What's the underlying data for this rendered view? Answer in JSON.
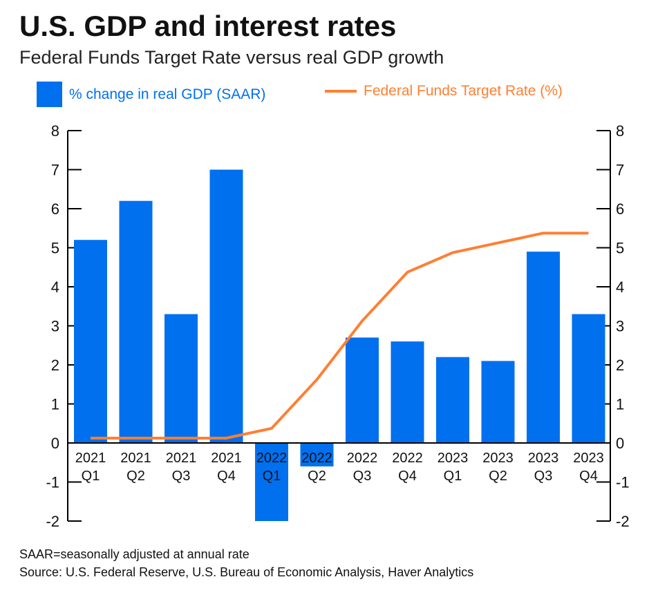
{
  "chart_data": {
    "type": "bar+line",
    "title": "U.S. GDP and interest rates",
    "subtitle": "Federal Funds Target Rate versus real GDP growth",
    "categories": [
      [
        "2021",
        "Q1"
      ],
      [
        "2021",
        "Q2"
      ],
      [
        "2021",
        "Q3"
      ],
      [
        "2021",
        "Q4"
      ],
      [
        "2022",
        "Q1"
      ],
      [
        "2022",
        "Q2"
      ],
      [
        "2022",
        "Q3"
      ],
      [
        "2022",
        "Q4"
      ],
      [
        "2023",
        "Q1"
      ],
      [
        "2023",
        "Q2"
      ],
      [
        "2023",
        "Q3"
      ],
      [
        "2023",
        "Q4"
      ]
    ],
    "series": [
      {
        "name": "% change in real GDP (SAAR)",
        "type": "bar",
        "axis": "left",
        "color": "#0070ee",
        "values": [
          5.2,
          6.2,
          3.3,
          7.0,
          -2.0,
          -0.6,
          2.7,
          2.6,
          2.2,
          2.1,
          4.9,
          3.3
        ]
      },
      {
        "name": "Federal Funds Target Rate (%)",
        "type": "line",
        "axis": "right",
        "color": "#ff7f32",
        "values": [
          0.125,
          0.125,
          0.125,
          0.125,
          0.375,
          1.625,
          3.125,
          4.375,
          4.875,
          5.125,
          5.375,
          5.375
        ]
      }
    ],
    "ylim": [
      -2,
      8
    ],
    "yticks": [
      "-2",
      "-1",
      "0",
      "1",
      "2",
      "3",
      "4",
      "5",
      "6",
      "7",
      "8"
    ],
    "legend": "top",
    "grid": false
  },
  "footnotes": [
    "SAAR=seasonally adjusted at annual rate",
    "Source: U.S. Federal Reserve, U.S. Bureau of Economic Analysis, Haver Analytics"
  ]
}
